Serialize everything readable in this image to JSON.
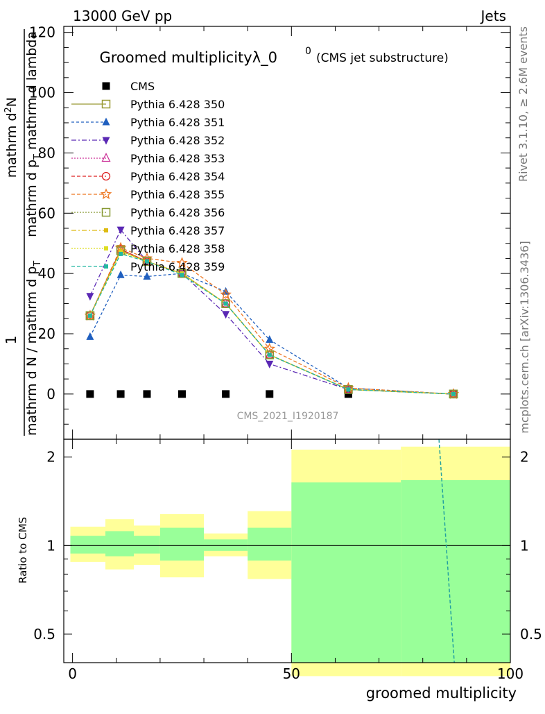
{
  "header": {
    "left": "13000 GeV pp",
    "right": "Jets"
  },
  "side_labels": {
    "rivet": "Rivet 3.1.10, ≥ 2.6M events",
    "mcplots": "mcplots.cern.ch [arXiv:1306.3436]"
  },
  "colors": {
    "yellow_band": "#ffff99",
    "green_band": "#99ff99",
    "axis": "#000000"
  },
  "chart_data": [
    {
      "type": "line",
      "title": "Groomed multiplicityλ_0",
      "title_superscript": "0",
      "subtitle": "(CMS jet substructure)",
      "watermark": "CMS_2021_I1920187",
      "ylabel_top": "1",
      "ylabel_top_num": "mathrm d",
      "ylabel_top_num_super": "2",
      "ylabel_top_num_tail": "N",
      "ylabel_top_den": "mathrm d p",
      "ylabel_top_den_sub": "T",
      "ylabel_top_den_tail": " mathrm d lambda",
      "ylabel_bottom": "mathrm d N / mathrm d p",
      "ylabel_bottom_sub": "T",
      "xlim": [
        -2,
        100
      ],
      "ylim": [
        -15,
        122
      ],
      "yticks": [
        0,
        20,
        40,
        60,
        80,
        100,
        120
      ],
      "ytick_labels": [
        "0",
        "20",
        "40",
        "60",
        "80",
        "100",
        "120"
      ],
      "legend_position": "upper-left",
      "series": [
        {
          "name": "CMS",
          "color": "#000000",
          "marker": "square-filled",
          "dash": "none",
          "x": [
            4,
            11,
            17,
            25,
            35,
            45,
            63,
            87
          ],
          "y": [
            0,
            0,
            0,
            0,
            0,
            0,
            0,
            0
          ]
        },
        {
          "name": "Pythia 6.428 350",
          "color": "#999933",
          "marker": "square-open",
          "dash": "solid",
          "x": [
            4,
            11,
            17,
            25,
            35,
            45,
            63,
            87
          ],
          "y": [
            26,
            48,
            44,
            40,
            30,
            13,
            1.5,
            0
          ]
        },
        {
          "name": "Pythia 6.428 351",
          "color": "#1f5fbf",
          "marker": "triangle-up-filled",
          "dash": "4,3",
          "x": [
            4,
            11,
            17,
            25,
            35,
            45,
            63,
            87
          ],
          "y": [
            19,
            39.5,
            39,
            40,
            34,
            18,
            2,
            0
          ]
        },
        {
          "name": "Pythia 6.428 352",
          "color": "#5a28b4",
          "marker": "triangle-down-filled",
          "dash": "7,3,2,3",
          "x": [
            4,
            11,
            17,
            25,
            35,
            45,
            63,
            87
          ],
          "y": [
            32.5,
            54.5,
            44,
            40,
            26.5,
            10,
            1.5,
            0
          ]
        },
        {
          "name": "Pythia 6.428 353",
          "color": "#cc3399",
          "marker": "triangle-up-open",
          "dash": "2,2",
          "x": [
            4,
            11,
            17,
            25,
            35,
            45,
            63,
            87
          ],
          "y": [
            26,
            48,
            44,
            40,
            30,
            13,
            1.5,
            0
          ]
        },
        {
          "name": "Pythia 6.428 354",
          "color": "#dd2222",
          "marker": "circle-open",
          "dash": "5,3",
          "x": [
            4,
            11,
            17,
            25,
            35,
            45,
            63,
            87
          ],
          "y": [
            26,
            48,
            44,
            40,
            30,
            13,
            1.5,
            0
          ]
        },
        {
          "name": "Pythia 6.428 355",
          "color": "#ee7722",
          "marker": "star-open",
          "dash": "5,3",
          "x": [
            4,
            11,
            17,
            25,
            35,
            45,
            63,
            87
          ],
          "y": [
            26,
            48.5,
            45,
            43.5,
            33,
            15,
            2,
            0
          ]
        },
        {
          "name": "Pythia 6.428 356",
          "color": "#889933",
          "marker": "square-open",
          "dash": "2,2",
          "x": [
            4,
            11,
            17,
            25,
            35,
            45,
            63,
            87
          ],
          "y": [
            26,
            47.5,
            44,
            40,
            30,
            13,
            1.5,
            0
          ]
        },
        {
          "name": "Pythia 6.428 357",
          "color": "#ddbb11",
          "marker": "small-dot",
          "dash": "7,3,2,3",
          "x": [
            4,
            11,
            17,
            25,
            35,
            45,
            63,
            87
          ],
          "y": [
            26,
            47.5,
            44,
            40,
            30,
            13,
            1.5,
            0
          ]
        },
        {
          "name": "Pythia 6.428 358",
          "color": "#dddd22",
          "marker": "small-dot",
          "dash": "2,2",
          "x": [
            4,
            11,
            17,
            25,
            35,
            45,
            63,
            87
          ],
          "y": [
            26,
            47,
            44,
            40,
            30,
            13,
            1.5,
            0
          ]
        },
        {
          "name": "Pythia 6.428 359",
          "color": "#22b8a0",
          "marker": "small-dot",
          "dash": "5,3",
          "x": [
            4,
            11,
            17,
            25,
            35,
            45,
            63,
            87
          ],
          "y": [
            26,
            46.5,
            44,
            39.5,
            30,
            13,
            1.5,
            0
          ]
        }
      ]
    },
    {
      "type": "area",
      "ylabel": "Ratio to CMS",
      "xlabel": "groomed multiplicity",
      "xlim": [
        -2,
        100
      ],
      "ylim": [
        0.4,
        2.3
      ],
      "y_scale": "log",
      "xticks": [
        0,
        50,
        100
      ],
      "xtick_labels": [
        "0",
        "50",
        "100"
      ],
      "yticks": [
        0.5,
        1,
        2
      ],
      "ytick_labels": [
        "0.5",
        "1",
        "2"
      ],
      "reference_line": 1,
      "bins": [
        {
          "x0": -0.5,
          "x1": 7.5,
          "yellow": [
            0.88,
            1.16
          ],
          "green": [
            0.94,
            1.08
          ]
        },
        {
          "x0": 7.5,
          "x1": 14,
          "yellow": [
            0.83,
            1.23
          ],
          "green": [
            0.92,
            1.12
          ]
        },
        {
          "x0": 14,
          "x1": 20,
          "yellow": [
            0.86,
            1.17
          ],
          "green": [
            0.94,
            1.08
          ]
        },
        {
          "x0": 20,
          "x1": 30,
          "yellow": [
            0.78,
            1.28
          ],
          "green": [
            0.89,
            1.15
          ]
        },
        {
          "x0": 30,
          "x1": 40,
          "yellow": [
            0.92,
            1.1
          ],
          "green": [
            0.96,
            1.05
          ]
        },
        {
          "x0": 40,
          "x1": 50,
          "yellow": [
            0.77,
            1.31
          ],
          "green": [
            0.89,
            1.15
          ]
        },
        {
          "x0": 50,
          "x1": 75,
          "yellow": [
            0.36,
            2.12
          ],
          "green": [
            0.4,
            1.64
          ]
        },
        {
          "x0": 75,
          "x1": 100,
          "yellow": [
            0.36,
            2.17
          ],
          "green": [
            0.4,
            1.67
          ]
        }
      ],
      "mc_ratio_line": {
        "x": [
          83.7,
          87.2
        ],
        "y": [
          2.3,
          0.4
        ],
        "color": "#22a0a0"
      }
    }
  ]
}
